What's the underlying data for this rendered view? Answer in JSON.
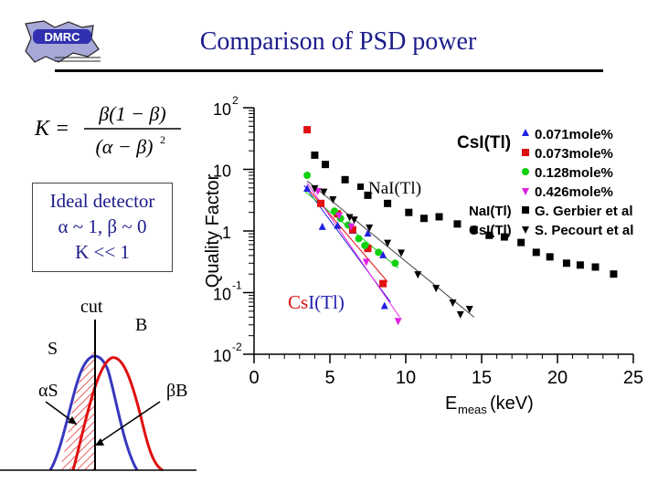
{
  "title": "Comparison of PSD power",
  "logo_text": "DMRC",
  "formula": {
    "lhs": "K =",
    "numerator": "β(1 − β)",
    "denominator": "(α − β)",
    "exponent": "2"
  },
  "ideal_box": {
    "line1": "Ideal detector",
    "line2": "α ~ 1, β ~ 0",
    "line3": "K << 1"
  },
  "sketch": {
    "cut_label": "cut",
    "b_label": "B",
    "s_label": "S",
    "alpha_s_label": "αS",
    "beta_b_label": "βB"
  },
  "colors": {
    "title": "#1c1c8c",
    "series_blue": "#2020e0",
    "series_red": "#e01010",
    "series_green": "#10d010",
    "series_magenta": "#e020e0",
    "series_black": "#000000"
  },
  "chart_data": {
    "type": "scatter",
    "xlabel": "E",
    "xlabel_sub": "meas",
    "xlabel_unit": "(keV)",
    "ylabel": "Quality Factor",
    "xlim": [
      0,
      25
    ],
    "ylim": [
      0.01,
      100
    ],
    "yscale": "log",
    "x_ticks": [
      0,
      5,
      10,
      15,
      20,
      25
    ],
    "y_ticks": [
      {
        "base": "10",
        "exp": "2"
      },
      {
        "base": "10",
        "exp": ""
      },
      {
        "base": "1",
        "exp": ""
      },
      {
        "base": "10",
        "exp": "-1"
      },
      {
        "base": "10",
        "exp": "-2"
      }
    ],
    "legend_position": "top-right",
    "legend_header": "CsI(Tl)",
    "annotations": {
      "nai_label": "NaI(Tl)",
      "csi_label_a": "Cs",
      "csi_label_b": "I(Tl)"
    },
    "series": [
      {
        "name": "0.071mole%",
        "group": "CsI(Tl)",
        "marker": "triangle-up",
        "color": "#2020e0",
        "points": [
          [
            3.5,
            4.8
          ],
          [
            4.5,
            1.15
          ],
          [
            5.5,
            1.2
          ],
          [
            6.5,
            1.0
          ],
          [
            7.5,
            0.9
          ],
          [
            8.5,
            0.4
          ],
          [
            8.6,
            0.06
          ]
        ]
      },
      {
        "name": "0.073mole%",
        "group": "CsI(Tl)",
        "marker": "square",
        "color": "#e01010",
        "points": [
          [
            3.5,
            44
          ],
          [
            4.4,
            2.8
          ],
          [
            5.5,
            1.9
          ],
          [
            6.5,
            1.05
          ],
          [
            7.5,
            0.52
          ],
          [
            8.5,
            0.14
          ]
        ]
      },
      {
        "name": "0.128mole%",
        "group": "CsI(Tl)",
        "marker": "circle",
        "color": "#10d010",
        "points": [
          [
            3.5,
            8.0
          ],
          [
            5.3,
            2.1
          ],
          [
            5.7,
            1.6
          ],
          [
            6.2,
            1.25
          ],
          [
            6.9,
            0.75
          ],
          [
            7.3,
            0.58
          ],
          [
            8.2,
            0.45
          ],
          [
            9.3,
            0.3
          ]
        ]
      },
      {
        "name": "0.426mole%",
        "group": "CsI(Tl)",
        "marker": "triangle-down",
        "color": "#e020e0",
        "points": [
          [
            4.2,
            4.5
          ],
          [
            5.6,
            1.8
          ],
          [
            6.4,
            1.2
          ],
          [
            7.4,
            0.32
          ],
          [
            9.5,
            0.035
          ]
        ]
      },
      {
        "name": "G. Gerbier et al",
        "group": "NaI(Tl)",
        "marker": "square",
        "color": "#000000",
        "points": [
          [
            4.0,
            17
          ],
          [
            4.7,
            12
          ],
          [
            6.0,
            6.8
          ],
          [
            7.5,
            3.8
          ],
          [
            8.8,
            2.8
          ],
          [
            10.2,
            2.0
          ],
          [
            11.2,
            1.6
          ],
          [
            12.2,
            1.7
          ],
          [
            13.4,
            1.3
          ],
          [
            14.5,
            1.05
          ],
          [
            15.5,
            0.85
          ],
          [
            16.5,
            0.8
          ],
          [
            17.6,
            0.65
          ],
          [
            18.6,
            0.45
          ],
          [
            19.5,
            0.38
          ],
          [
            20.6,
            0.3
          ],
          [
            21.5,
            0.28
          ],
          [
            22.5,
            0.26
          ],
          [
            23.7,
            0.2
          ]
        ]
      },
      {
        "name": "S. Pecourt et al",
        "group": "CsI(Tl)",
        "marker": "triangle-down",
        "color": "#000000",
        "points": [
          [
            4.0,
            5.0
          ],
          [
            4.6,
            4.4
          ],
          [
            5.2,
            3.3
          ],
          [
            6.3,
            1.7
          ],
          [
            6.6,
            1.55
          ],
          [
            7.6,
            1.15
          ],
          [
            8.8,
            0.65
          ],
          [
            9.7,
            0.45
          ],
          [
            10.8,
            0.2
          ],
          [
            12.0,
            0.12
          ],
          [
            13.1,
            0.07
          ],
          [
            13.6,
            0.045
          ],
          [
            14.2,
            0.055
          ]
        ]
      }
    ]
  }
}
